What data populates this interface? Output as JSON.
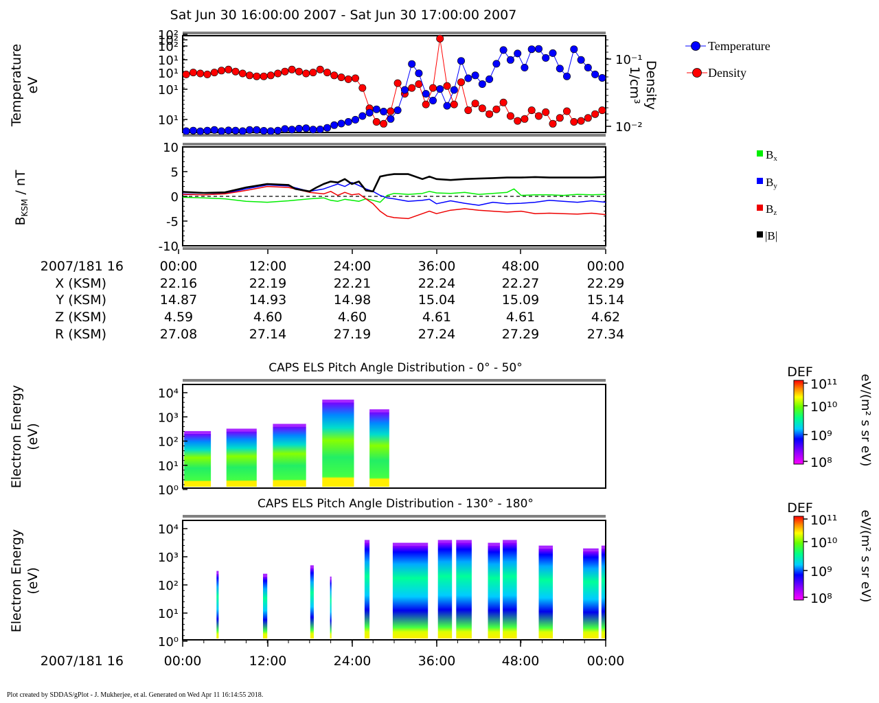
{
  "page": {
    "title": "Sat Jun 30 16:00:00 2007 - Sat Jun 30 17:00:00 2007",
    "footer": "Plot created by SDDAS/gPlot - J. Mukherjee, et al.  Generated on Wed Apr 11 16:14:55 2018."
  },
  "chart_data": [
    {
      "type": "line",
      "panel": "plasma-moments",
      "ylabel": [
        "Temperature",
        "eV"
      ],
      "y2label": [
        "Density",
        "1/cm³"
      ],
      "yscale": "log",
      "y2scale": "log",
      "y_ticks": [
        "10²",
        "10²",
        "10²",
        "10¹",
        "10¹",
        "10¹",
        "10¹"
      ],
      "y2_ticks": [
        "10⁻¹",
        "10⁻²"
      ],
      "xlim": [
        0,
        60
      ],
      "grid": false,
      "legend_position": "right",
      "series": [
        {
          "name": "Temperature",
          "color": "#0000ff",
          "axis": "left",
          "x": [
            0.5,
            1.5,
            2.5,
            3.5,
            4.5,
            5.5,
            6.5,
            7.5,
            8.5,
            9.5,
            10.5,
            11.5,
            12.5,
            13.5,
            14.5,
            15.5,
            16.5,
            17.5,
            18.5,
            19.5,
            20.5,
            21.5,
            22.5,
            23.5,
            24.5,
            25.5,
            26.5,
            27.5,
            28.5,
            29.5,
            30.5,
            31.5,
            32.5,
            33.5,
            34.5,
            35.5,
            36.5,
            37.5,
            38.5,
            39.5,
            40.5,
            41.5,
            42.5,
            43.5,
            44.5,
            45.5,
            46.5,
            47.5,
            48.5,
            49.5,
            50.5,
            51.5,
            52.5,
            53.5,
            54.5,
            55.5,
            56.5,
            57.5,
            58.5,
            59.5
          ],
          "y": [
            0.7,
            1.0,
            0.6,
            1.0,
            1.3,
            0.7,
            1.1,
            1.0,
            0.7,
            1.3,
            1.3,
            0.9,
            0.7,
            1.0,
            1.8,
            1.5,
            2.0,
            2.2,
            1.5,
            1.6,
            2.4,
            3.8,
            4.6,
            5.5,
            6.6,
            8.5,
            10.2,
            12.0,
            10.8,
            7.0,
            11.5,
            22.0,
            35.4,
            30.6,
            20.0,
            16.5,
            22.5,
            13.8,
            22.0,
            37.0,
            28.0,
            29.5,
            25.0,
            27.5,
            35.5,
            42.6,
            37.5,
            40.8,
            33.5,
            43.0,
            43.2,
            38.5,
            41.0,
            33.0,
            29.0,
            43.0,
            37.5,
            33.5,
            30.0,
            28.2
          ],
          "y_unit": "relative log position (0=bottom, 50=top)"
        },
        {
          "name": "Density",
          "color": "#ff0000",
          "axis": "right",
          "x": [
            0.5,
            1.5,
            2.5,
            3.5,
            4.5,
            5.5,
            6.5,
            7.5,
            8.5,
            9.5,
            10.5,
            11.5,
            12.5,
            13.5,
            14.5,
            15.5,
            16.5,
            17.5,
            18.5,
            19.5,
            20.5,
            21.5,
            22.5,
            23.5,
            24.5,
            25.5,
            26.5,
            27.5,
            28.5,
            29.5,
            30.5,
            31.5,
            32.5,
            33.5,
            34.5,
            35.5,
            36.5,
            37.5,
            38.5,
            39.5,
            40.5,
            41.5,
            42.5,
            43.5,
            44.5,
            45.5,
            46.5,
            47.5,
            48.5,
            49.5,
            50.5,
            51.5,
            52.5,
            53.5,
            54.5,
            55.5,
            56.5,
            57.5,
            58.5,
            59.5
          ],
          "y": [
            30.0,
            31.0,
            30.5,
            30.0,
            31.0,
            32.0,
            32.5,
            31.5,
            30.5,
            29.5,
            29.0,
            29.0,
            29.5,
            30.5,
            31.5,
            32.5,
            31.5,
            30.5,
            31.0,
            32.5,
            31.0,
            29.5,
            28.5,
            27.5,
            28.0,
            23.0,
            12.5,
            5.5,
            4.5,
            11.0,
            25.5,
            20.0,
            23.0,
            25.0,
            14.5,
            23.0,
            48.5,
            24.0,
            14.5,
            26.0,
            11.5,
            15.0,
            12.5,
            9.5,
            12.0,
            15.5,
            8.5,
            6.0,
            7.0,
            11.5,
            8.5,
            10.5,
            4.5,
            7.5,
            11.0,
            5.5,
            6.0,
            7.5,
            9.5,
            11.5
          ],
          "y_unit": "relative log position (0=bottom, 50=top)"
        }
      ]
    },
    {
      "type": "line",
      "panel": "magnetic-field",
      "ylabel": "BKSM / nT",
      "ylim": [
        -10,
        10
      ],
      "y_ticks": [
        "10",
        "5",
        "0",
        "-5",
        "-10"
      ],
      "xlim": [
        0,
        60
      ],
      "grid": false,
      "legend_position": "right",
      "series": [
        {
          "name": "Bx",
          "color": "#00ee00",
          "x": [
            0,
            3,
            6,
            9,
            12,
            15,
            18,
            20,
            21,
            22,
            23,
            24,
            25,
            26,
            27,
            28,
            29,
            30,
            32,
            34,
            35,
            36,
            38,
            40,
            42,
            44,
            46,
            47,
            48,
            50,
            52,
            54,
            56,
            58,
            60
          ],
          "y": [
            -0.2,
            -0.3,
            -0.5,
            -1.0,
            -1.2,
            -0.9,
            -0.5,
            -0.3,
            -0.8,
            -1.0,
            -0.6,
            -0.8,
            -1.0,
            -0.5,
            -0.8,
            -1.2,
            0.2,
            0.6,
            0.4,
            0.6,
            1.0,
            0.7,
            0.6,
            0.8,
            0.4,
            0.6,
            0.8,
            1.5,
            0.2,
            0.3,
            0.3,
            0.2,
            0.4,
            0.3,
            0.4
          ]
        },
        {
          "name": "By",
          "color": "#0000ff",
          "x": [
            0,
            3,
            6,
            9,
            12,
            15,
            18,
            20,
            21,
            22,
            23,
            24,
            25,
            26,
            27,
            28,
            29,
            30,
            32,
            34,
            35,
            36,
            38,
            40,
            42,
            44,
            46,
            48,
            50,
            52,
            54,
            56,
            58,
            60
          ],
          "y": [
            0.5,
            0.3,
            0.6,
            1.5,
            2.3,
            2.1,
            1.0,
            1.5,
            2.0,
            2.5,
            2.0,
            2.8,
            2.2,
            1.5,
            1.0,
            0.2,
            -0.3,
            -0.5,
            -1.0,
            -0.8,
            -0.6,
            -1.5,
            -0.9,
            -1.4,
            -1.8,
            -1.2,
            -1.5,
            -1.4,
            -1.2,
            -0.8,
            -1.0,
            -1.2,
            -0.9,
            -1.2
          ]
        },
        {
          "name": "Bz",
          "color": "#ee0000",
          "x": [
            0,
            3,
            6,
            9,
            12,
            15,
            18,
            20,
            21,
            22,
            23,
            24,
            25,
            26,
            27,
            28,
            29,
            30,
            32,
            34,
            35,
            36,
            38,
            40,
            42,
            44,
            46,
            48,
            50,
            52,
            54,
            56,
            58,
            60
          ],
          "y": [
            0.4,
            0.3,
            0.5,
            1.2,
            2.0,
            1.8,
            0.8,
            0.5,
            1.0,
            0.2,
            0.8,
            0.3,
            0.5,
            -0.5,
            -1.5,
            -3.0,
            -4.0,
            -4.3,
            -4.5,
            -3.5,
            -3.0,
            -3.5,
            -2.8,
            -2.5,
            -2.8,
            -3.0,
            -3.2,
            -3.0,
            -3.5,
            -3.4,
            -3.5,
            -3.6,
            -3.4,
            -3.7
          ]
        },
        {
          "name": "|B|",
          "color": "#000000",
          "x": [
            0,
            3,
            6,
            9,
            12,
            15,
            16,
            18,
            19,
            20,
            21,
            22,
            23,
            24,
            25,
            26,
            27,
            28,
            29,
            30,
            32,
            34,
            35,
            36,
            38,
            40,
            42,
            44,
            46,
            48,
            50,
            52,
            54,
            56,
            58,
            60
          ],
          "y": [
            0.9,
            0.7,
            0.8,
            1.8,
            2.5,
            2.3,
            1.5,
            1.0,
            1.8,
            2.5,
            3.0,
            2.8,
            3.5,
            2.5,
            3.0,
            1.2,
            1.0,
            4.0,
            4.3,
            4.5,
            4.5,
            3.5,
            4.0,
            3.5,
            3.3,
            3.5,
            3.6,
            3.7,
            3.8,
            3.8,
            3.9,
            3.8,
            3.8,
            3.8,
            3.8,
            3.9
          ]
        }
      ],
      "reference_line": {
        "y": 0,
        "style": "dashed"
      }
    },
    {
      "type": "table",
      "panel": "ephemeris",
      "rows": [
        {
          "label": "2007/181 16",
          "values": [
            "00:00",
            "12:00",
            "24:00",
            "36:00",
            "48:00",
            "00:00"
          ]
        },
        {
          "label": "X (KSM)",
          "values": [
            "22.16",
            "22.19",
            "22.21",
            "22.24",
            "22.27",
            "22.29"
          ]
        },
        {
          "label": "Y (KSM)",
          "values": [
            "14.87",
            "14.93",
            "14.98",
            "15.04",
            "15.09",
            "15.14"
          ]
        },
        {
          "label": "Z (KSM)",
          "values": [
            "4.59",
            "4.60",
            "4.60",
            "4.61",
            "4.61",
            "4.62"
          ]
        },
        {
          "label": "R (KSM)",
          "values": [
            "27.08",
            "27.14",
            "27.19",
            "27.24",
            "27.29",
            "27.34"
          ]
        }
      ]
    },
    {
      "type": "heatmap",
      "panel": "els-pa-0-50",
      "title": "CAPS ELS Pitch Angle Distribution - 0° - 50°",
      "ylabel": [
        "Electron Energy",
        "(eV)"
      ],
      "y_ticks": [
        "10⁴",
        "10³",
        "10²",
        "10¹",
        "10⁰"
      ],
      "yscale": "log",
      "xlim": [
        0,
        60
      ],
      "colorbar": {
        "title": "DEF",
        "unit": "eV/(m² s sr eV)",
        "ticks": [
          "10¹¹",
          "10¹⁰",
          "10⁹",
          "10⁸"
        ]
      },
      "blocks": [
        {
          "x0": 0.2,
          "x1": 4.0,
          "top_decade": 2.3
        },
        {
          "x0": 6.2,
          "x1": 10.5,
          "top_decade": 2.4
        },
        {
          "x0": 12.8,
          "x1": 17.5,
          "top_decade": 2.6
        },
        {
          "x0": 19.8,
          "x1": 24.3,
          "top_decade": 3.6
        },
        {
          "x0": 26.5,
          "x1": 29.3,
          "top_decade": 3.2
        }
      ]
    },
    {
      "type": "heatmap",
      "panel": "els-pa-130-180",
      "title": "CAPS ELS Pitch Angle Distribution - 130° - 180°",
      "ylabel": [
        "Electron Energy",
        "(eV)"
      ],
      "y_ticks": [
        "10⁴",
        "10³",
        "10²",
        "10¹",
        "10⁰"
      ],
      "yscale": "log",
      "xlim": [
        0,
        60
      ],
      "x_ticks": [
        "00:00",
        "12:00",
        "24:00",
        "36:00",
        "48:00",
        "00:00"
      ],
      "x_prefix": "2007/181 16",
      "colorbar": {
        "title": "DEF",
        "unit": "eV/(m² s sr eV)",
        "ticks": [
          "10¹¹",
          "10¹⁰",
          "10⁹",
          "10⁸"
        ]
      },
      "blocks": [
        {
          "x0": 4.8,
          "x1": 5.1,
          "top_decade": 2.4
        },
        {
          "x0": 11.4,
          "x1": 12.0,
          "top_decade": 2.3
        },
        {
          "x0": 18.1,
          "x1": 18.6,
          "top_decade": 2.6
        },
        {
          "x0": 20.9,
          "x1": 21.1,
          "top_decade": 2.2
        },
        {
          "x0": 25.8,
          "x1": 26.5,
          "top_decade": 3.5
        },
        {
          "x0": 29.8,
          "x1": 34.8,
          "top_decade": 3.4
        },
        {
          "x0": 36.2,
          "x1": 38.2,
          "top_decade": 3.5
        },
        {
          "x0": 38.8,
          "x1": 41.0,
          "top_decade": 3.5
        },
        {
          "x0": 43.3,
          "x1": 45.0,
          "top_decade": 3.4
        },
        {
          "x0": 45.4,
          "x1": 47.4,
          "top_decade": 3.5
        },
        {
          "x0": 50.5,
          "x1": 52.5,
          "top_decade": 3.3
        },
        {
          "x0": 56.8,
          "x1": 59.0,
          "top_decade": 3.2
        },
        {
          "x0": 59.4,
          "x1": 60.0,
          "top_decade": 3.3
        }
      ]
    }
  ]
}
